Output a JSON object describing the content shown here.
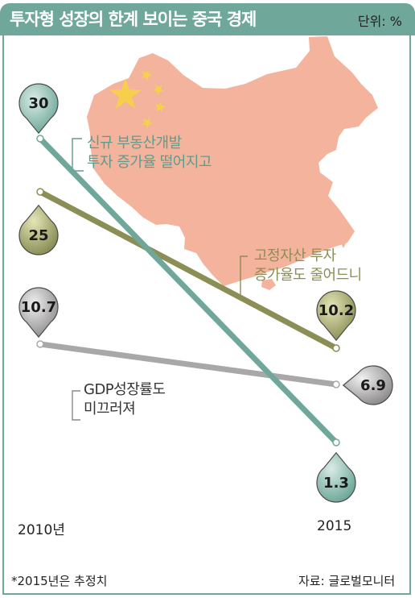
{
  "header": {
    "title": "투자형 성장의 한계 보이는 중국 경제",
    "unit": "단위: %"
  },
  "colors": {
    "header": "#6fa89a",
    "map": "#f4b39d",
    "star": "#f6d04d",
    "series_investment": "#6fa89a",
    "series_fixed": "#8b8e55",
    "series_gdp": "#a9a7a8"
  },
  "chart_data": {
    "type": "line",
    "title": "투자형 성장의 한계 보이는 중국 경제",
    "unit": "단위: %",
    "x": [
      "2010년",
      "2015"
    ],
    "series": [
      {
        "name": "신규 부동산개발 투자 증가율 떨어지고",
        "values": [
          30,
          1.3
        ],
        "labels": [
          "30",
          "1.3"
        ]
      },
      {
        "name": "고정자산 투자 증가율도 줄어드니",
        "values": [
          25,
          10.2
        ],
        "labels": [
          "25",
          "10.2"
        ]
      },
      {
        "name": "GDP성장률도 미끄러져",
        "values": [
          10.7,
          6.9
        ],
        "labels": [
          "10.7",
          "6.9"
        ]
      }
    ],
    "annotations": {
      "investment": [
        "신규  부동산개발",
        "투자  증가율  떨어지고"
      ],
      "fixed": [
        "고정자산  투자",
        "증가율도  줄어드니"
      ],
      "gdp": [
        "GDP성장률도",
        "미끄러져"
      ]
    },
    "grid": false,
    "legend": "none"
  },
  "footer": {
    "note": "*2015년은 추정치",
    "source": "자료: 글로벌모니터"
  }
}
